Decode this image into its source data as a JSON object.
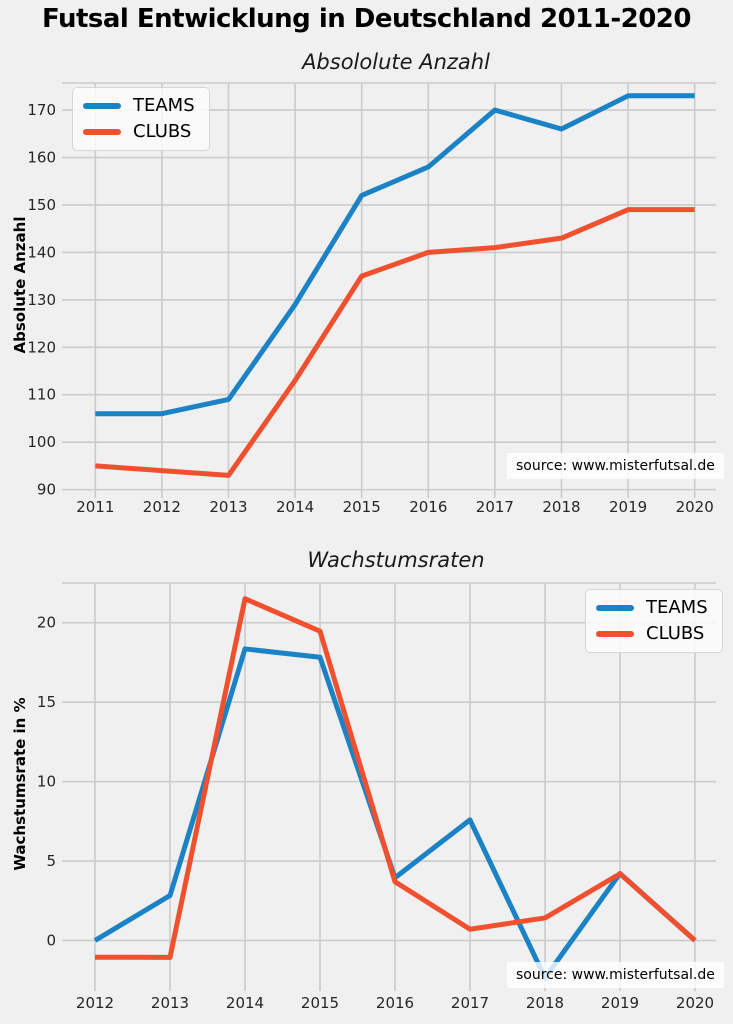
{
  "page": {
    "title": "Futsal Entwicklung in Deutschland 2011-2020"
  },
  "colors": {
    "background": "#f0f0f0",
    "grid": "#cbcbcb",
    "teams": "#1b83c5",
    "clubs": "#f1502f",
    "tick_label": "#262626"
  },
  "chart_data": [
    {
      "type": "line",
      "title": "Absololute Anzahl",
      "ylabel": "Absolute Anzahl",
      "x": [
        2011,
        2012,
        2013,
        2014,
        2015,
        2016,
        2017,
        2018,
        2019,
        2020
      ],
      "series": [
        {
          "name": "TEAMS",
          "color_key": "teams",
          "values": [
            106,
            106,
            109,
            129,
            152,
            158,
            170,
            166,
            173,
            173
          ]
        },
        {
          "name": "CLUBS",
          "color_key": "clubs",
          "values": [
            95,
            94,
            93,
            113,
            135,
            140,
            141,
            143,
            149,
            149
          ]
        }
      ],
      "yticks": [
        90,
        100,
        110,
        120,
        130,
        140,
        150,
        160,
        170
      ],
      "ylim": [
        89.5,
        175.7
      ],
      "xlim": [
        2010.5,
        2020.23
      ],
      "grid": true,
      "legend_position": "upper-left",
      "annotation": "source: www.misterfutsal.de"
    },
    {
      "type": "line",
      "title": "Wachstumsraten",
      "ylabel": "Wachstumsrate in %",
      "x": [
        2012,
        2013,
        2014,
        2015,
        2016,
        2017,
        2018,
        2019,
        2020
      ],
      "series": [
        {
          "name": "TEAMS",
          "color_key": "teams",
          "values": [
            0.0,
            2.83,
            18.35,
            17.83,
            3.95,
            7.59,
            -2.35,
            4.22,
            0.0
          ]
        },
        {
          "name": "CLUBS",
          "color_key": "clubs",
          "values": [
            -1.05,
            -1.06,
            21.51,
            19.47,
            3.7,
            0.71,
            1.42,
            4.2,
            0.0
          ]
        }
      ],
      "yticks": [
        0,
        5,
        10,
        15,
        20
      ],
      "ylim": [
        -2.8,
        22.5
      ],
      "xlim": [
        2011.56,
        2020.2
      ],
      "grid": true,
      "legend_position": "upper-right",
      "annotation": "source: www.misterfutsal.de"
    }
  ]
}
